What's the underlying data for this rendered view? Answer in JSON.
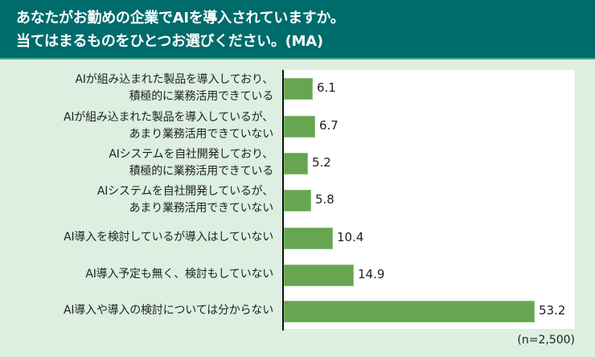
{
  "header": {
    "line1": "あなたがお勤めの企業でAIを導入されていますか。",
    "line2": "当てはまるものをひとつお選びください。(MA)"
  },
  "chart_data": {
    "type": "bar",
    "orientation": "horizontal",
    "title": "あなたがお勤めの企業でAIを導入されていますか。当てはまるものをひとつお選びください。(MA)",
    "categories": [
      "AIが組み込まれた製品を導入しており、積極的に業務活用できている",
      "AIが組み込まれた製品を導入しているが、あまり業務活用できていない",
      "AIシステムを自社開発しており、積極的に業務活用できている",
      "AIシステムを自社開発しているが、あまり業務活用できていない",
      "AI導入を検討しているが導入はしていない",
      "AI導入予定も無く、検討もしていない",
      "AI導入や導入の検討については分からない"
    ],
    "values": [
      6.1,
      6.7,
      5.2,
      5.8,
      10.4,
      14.9,
      53.2
    ],
    "xlabel": "",
    "ylabel": "",
    "unit": "%",
    "grid": false,
    "legend": null,
    "bar_color": "#67a552",
    "note": "(n=2,500)"
  },
  "rows": [
    {
      "l1": "AIが組み込まれた製品を導入しており、",
      "l2": "積極的に業務活用できている",
      "value": "6.1"
    },
    {
      "l1": "AIが組み込まれた製品を導入しているが、",
      "l2": "あまり業務活用できていない",
      "value": "6.7"
    },
    {
      "l1": "AIシステムを自社開発しており、",
      "l2": "積極的に業務活用できている",
      "value": "5.2"
    },
    {
      "l1": "AIシステムを自社開発しているが、",
      "l2": "あまり業務活用できていない",
      "value": "5.8"
    },
    {
      "l1": "AI導入を検討しているが導入はしていない",
      "l2": "",
      "value": "10.4"
    },
    {
      "l1": "AI導入予定も無く、検討もしていない",
      "l2": "",
      "value": "14.9"
    },
    {
      "l1": "AI導入や導入の検討については分からない",
      "l2": "",
      "value": "53.2"
    }
  ],
  "note": "(n=2,500)"
}
